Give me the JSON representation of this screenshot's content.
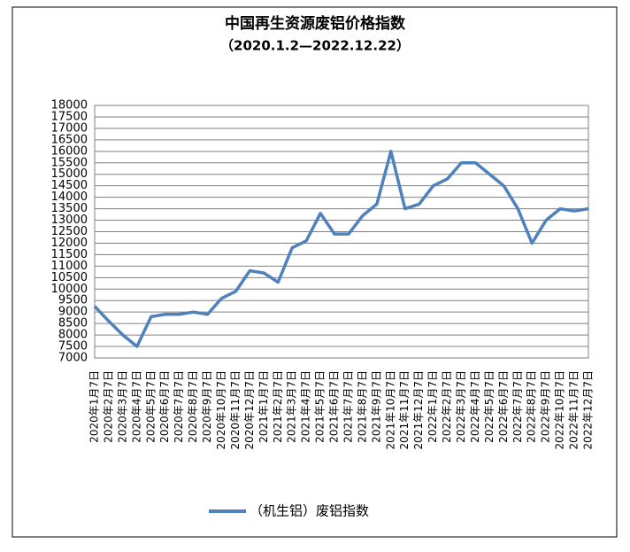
{
  "chart_data": {
    "type": "line",
    "title": "中国再生资源废铝价格指数",
    "subtitle": "（2020.1.2—2022.12.22）",
    "categories": [
      "2020年1月7日",
      "2020年2月7日",
      "2020年3月7日",
      "2020年4月7日",
      "2020年5月7日",
      "2020年6月7日",
      "2020年7月7日",
      "2020年8月7日",
      "2020年9月7日",
      "2020年10月7日",
      "2020年11月7日",
      "2020年12月7日",
      "2021年1月7日",
      "2021年2月7日",
      "2021年3月7日",
      "2021年4月7日",
      "2021年5月7日",
      "2021年6月7日",
      "2021年7月7日",
      "2021年8月7日",
      "2021年9月7日",
      "2021年10月7日",
      "2021年11月7日",
      "2021年12月7日",
      "2022年1月7日",
      "2022年2月7日",
      "2022年3月7日",
      "2022年4月7日",
      "2022年5月7日",
      "2022年6月7日",
      "2022年7月7日",
      "2022年8月7日",
      "2022年9月7日",
      "2022年10月7日",
      "2022年11月7日",
      "2022年12月7日"
    ],
    "series": [
      {
        "name": "（机生铝）废铝指数",
        "color": "#4f81bd",
        "values": [
          9250,
          8600,
          8000,
          7500,
          8800,
          8900,
          8900,
          9000,
          8900,
          9600,
          9900,
          10800,
          10700,
          10300,
          11800,
          12100,
          13300,
          12400,
          12400,
          13200,
          13700,
          16000,
          13500,
          13700,
          14500,
          14800,
          15500,
          15500,
          15000,
          14500,
          13500,
          12000,
          13000,
          13500,
          13400,
          13500
        ]
      }
    ],
    "ylim": [
      7000,
      18000
    ],
    "yticks": [
      7000,
      7500,
      8000,
      8500,
      9000,
      9500,
      10000,
      10500,
      11000,
      11500,
      12000,
      12500,
      13000,
      13500,
      14000,
      14500,
      15000,
      15500,
      16000,
      16500,
      17000,
      17500,
      18000
    ],
    "grid": true
  }
}
